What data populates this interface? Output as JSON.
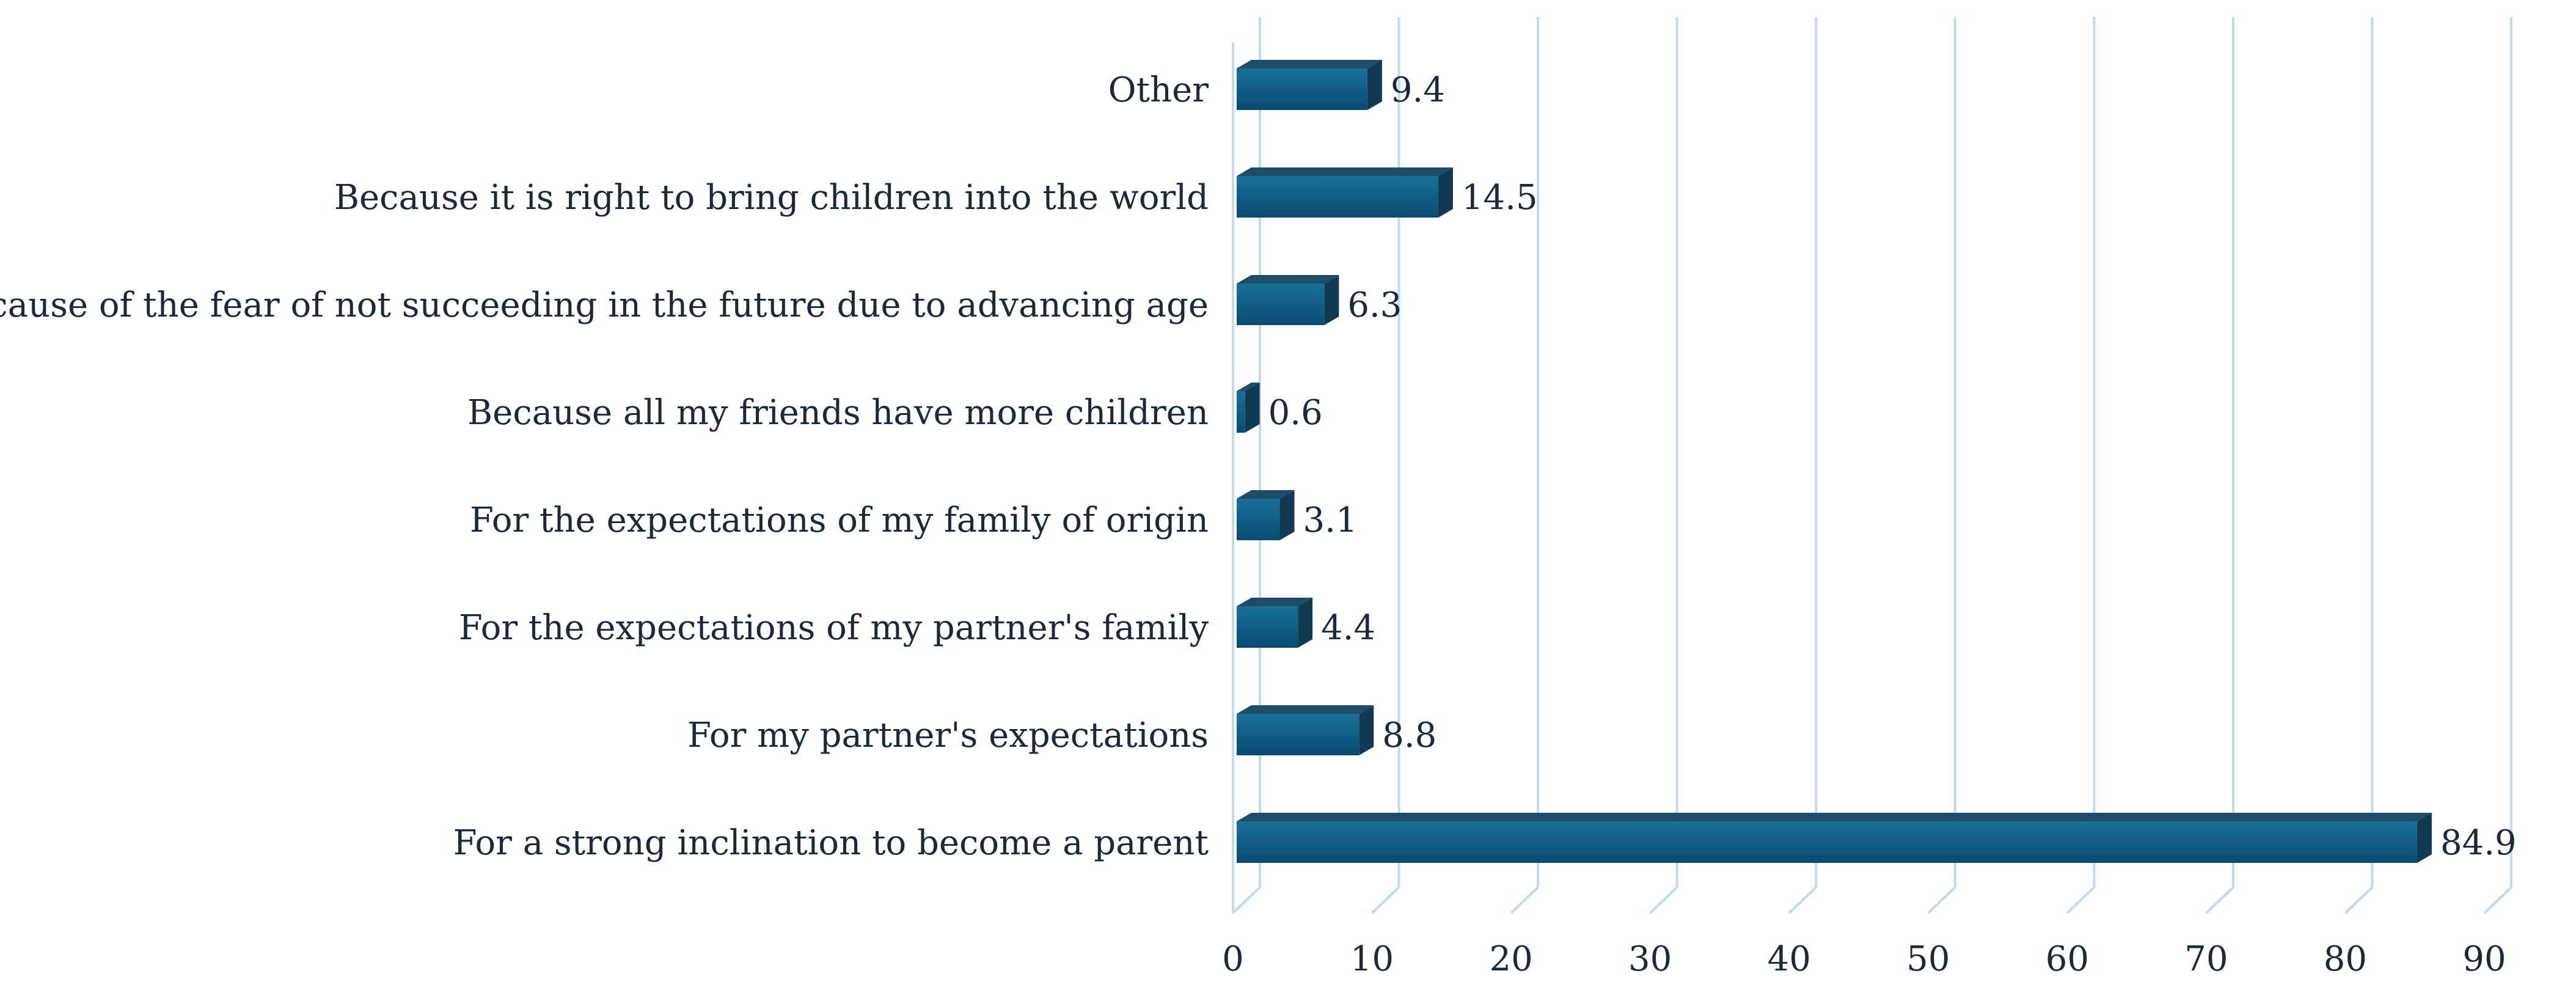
{
  "chart_data": {
    "type": "bar",
    "orientation": "horizontal",
    "style": "3d",
    "categories": [
      "Other",
      "Because it is right to bring children into the world",
      "Because of the fear of not succeeding in the future due to advancing age",
      "Because all my friends have more children",
      "For the expectations of my family of origin",
      "For the expectations of my partner's family",
      "For my partner's expectations",
      "For a strong inclination to become a parent"
    ],
    "values": [
      9.4,
      14.5,
      6.3,
      0.6,
      3.1,
      4.4,
      8.8,
      84.9
    ],
    "value_labels": [
      "9.4",
      "14.5",
      "6.3",
      "0.6",
      "3.1",
      "4.4",
      "8.8",
      "84.9"
    ],
    "title": "",
    "xlabel": "",
    "ylabel": "",
    "xlim": [
      0,
      90
    ],
    "xticks": [
      "0",
      "10",
      "20",
      "30",
      "40",
      "50",
      "60",
      "70",
      "80",
      "90"
    ],
    "grid": true,
    "legend": "none",
    "colors": {
      "bar_front": "#0f5f87",
      "bar_top": "#1d4d68",
      "bar_side": "#123a52",
      "grid": "#bcdcef",
      "text": "#1a2a3a"
    }
  }
}
